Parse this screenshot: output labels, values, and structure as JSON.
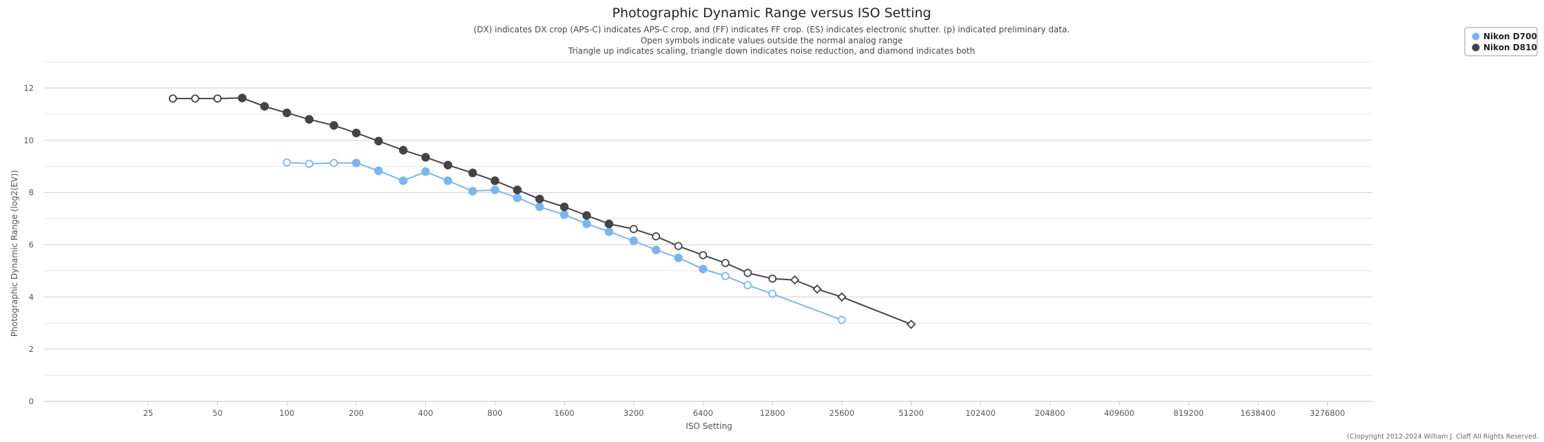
{
  "chart_data": {
    "type": "line",
    "title": "Photographic Dynamic Range versus ISO Setting",
    "subtitle": [
      "(DX) indicates DX crop (APS-C) indicates APS-C crop, and (FF) indicates FF crop. (ES) indicates electronic shutter. (p) indicated preliminary data.",
      "Open symbols indicate values outside the normal analog range",
      "Triangle up indicates scaling, triangle down indicates noise reduction, and diamond indicates both"
    ],
    "xlabel": "ISO Setting",
    "ylabel": "Photographic Dynamic Range (log2(EV))",
    "x_scale": "log2",
    "x_ticks": [
      25,
      50,
      100,
      200,
      400,
      800,
      1600,
      3200,
      6400,
      12800,
      25600,
      51200,
      102400,
      204800,
      409600,
      819200,
      1638400,
      3276800
    ],
    "x_tick_labels": [
      "25",
      "50",
      "100",
      "200",
      "400",
      "800",
      "1600",
      "3200",
      "6400",
      "12800",
      "25600",
      "51200",
      "102400",
      "204800",
      "409600",
      "819200",
      "1638400",
      "3276800"
    ],
    "y_ticks": [
      0,
      2,
      4,
      6,
      8,
      10,
      12
    ],
    "y_tick_labels": [
      "0",
      "2",
      "4",
      "6",
      "8",
      "10",
      "12"
    ],
    "ylim": [
      0,
      13
    ],
    "grid": true,
    "legend_position": "top-right",
    "credit": "(C)opyright 2012-2024 William J. Claff All Rights Reserved.",
    "series": [
      {
        "name": "Nikon D700",
        "color": "#7cb5ec",
        "points": [
          {
            "x": 100,
            "y": 9.15,
            "marker": "open-circle"
          },
          {
            "x": 125,
            "y": 9.1,
            "marker": "open-circle"
          },
          {
            "x": 160,
            "y": 9.13,
            "marker": "open-circle"
          },
          {
            "x": 200,
            "y": 9.13,
            "marker": "circle"
          },
          {
            "x": 250,
            "y": 8.83,
            "marker": "circle"
          },
          {
            "x": 320,
            "y": 8.45,
            "marker": "circle"
          },
          {
            "x": 400,
            "y": 8.8,
            "marker": "circle"
          },
          {
            "x": 500,
            "y": 8.45,
            "marker": "circle"
          },
          {
            "x": 640,
            "y": 8.05,
            "marker": "circle"
          },
          {
            "x": 800,
            "y": 8.1,
            "marker": "circle"
          },
          {
            "x": 1000,
            "y": 7.8,
            "marker": "circle"
          },
          {
            "x": 1250,
            "y": 7.45,
            "marker": "circle"
          },
          {
            "x": 1600,
            "y": 7.15,
            "marker": "circle"
          },
          {
            "x": 2000,
            "y": 6.8,
            "marker": "circle"
          },
          {
            "x": 2500,
            "y": 6.5,
            "marker": "circle"
          },
          {
            "x": 3200,
            "y": 6.15,
            "marker": "circle"
          },
          {
            "x": 4000,
            "y": 5.8,
            "marker": "circle"
          },
          {
            "x": 5000,
            "y": 5.5,
            "marker": "circle"
          },
          {
            "x": 6400,
            "y": 5.07,
            "marker": "circle"
          },
          {
            "x": 8000,
            "y": 4.8,
            "marker": "open-circle"
          },
          {
            "x": 10000,
            "y": 4.45,
            "marker": "open-circle"
          },
          {
            "x": 12800,
            "y": 4.12,
            "marker": "open-circle"
          },
          {
            "x": 25600,
            "y": 3.12,
            "marker": "open-circle"
          }
        ]
      },
      {
        "name": "Nikon D810",
        "color": "#434348",
        "points": [
          {
            "x": 32,
            "y": 11.6,
            "marker": "open-circle"
          },
          {
            "x": 40,
            "y": 11.6,
            "marker": "open-circle"
          },
          {
            "x": 50,
            "y": 11.6,
            "marker": "open-circle"
          },
          {
            "x": 64,
            "y": 11.62,
            "marker": "circle"
          },
          {
            "x": 80,
            "y": 11.3,
            "marker": "circle"
          },
          {
            "x": 100,
            "y": 11.05,
            "marker": "circle"
          },
          {
            "x": 125,
            "y": 10.8,
            "marker": "circle"
          },
          {
            "x": 160,
            "y": 10.57,
            "marker": "circle"
          },
          {
            "x": 200,
            "y": 10.28,
            "marker": "circle"
          },
          {
            "x": 250,
            "y": 9.97,
            "marker": "circle"
          },
          {
            "x": 320,
            "y": 9.62,
            "marker": "circle"
          },
          {
            "x": 400,
            "y": 9.35,
            "marker": "circle"
          },
          {
            "x": 500,
            "y": 9.05,
            "marker": "circle"
          },
          {
            "x": 640,
            "y": 8.75,
            "marker": "circle"
          },
          {
            "x": 800,
            "y": 8.45,
            "marker": "circle"
          },
          {
            "x": 1000,
            "y": 8.1,
            "marker": "circle"
          },
          {
            "x": 1250,
            "y": 7.75,
            "marker": "circle"
          },
          {
            "x": 1600,
            "y": 7.45,
            "marker": "circle"
          },
          {
            "x": 2000,
            "y": 7.12,
            "marker": "circle"
          },
          {
            "x": 2500,
            "y": 6.8,
            "marker": "circle"
          },
          {
            "x": 3200,
            "y": 6.6,
            "marker": "open-circle"
          },
          {
            "x": 4000,
            "y": 6.32,
            "marker": "open-circle"
          },
          {
            "x": 5000,
            "y": 5.95,
            "marker": "open-circle"
          },
          {
            "x": 6400,
            "y": 5.6,
            "marker": "open-circle"
          },
          {
            "x": 8000,
            "y": 5.3,
            "marker": "open-circle"
          },
          {
            "x": 10000,
            "y": 4.92,
            "marker": "open-circle"
          },
          {
            "x": 12800,
            "y": 4.7,
            "marker": "open-circle"
          },
          {
            "x": 16000,
            "y": 4.65,
            "marker": "open-diamond"
          },
          {
            "x": 20000,
            "y": 4.3,
            "marker": "open-diamond"
          },
          {
            "x": 25600,
            "y": 4.0,
            "marker": "open-diamond"
          },
          {
            "x": 51200,
            "y": 2.95,
            "marker": "open-diamond"
          }
        ]
      }
    ]
  }
}
